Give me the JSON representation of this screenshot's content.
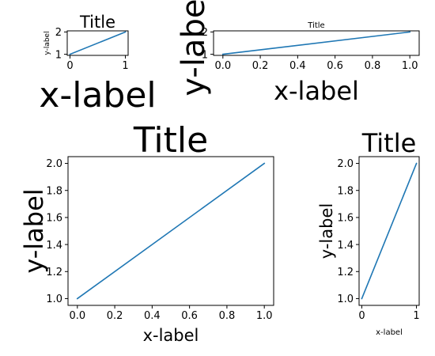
{
  "chart_data": [
    {
      "type": "line",
      "title": "Title",
      "xlabel": "x-label",
      "ylabel": "y-label",
      "x": [
        0,
        1
      ],
      "y": [
        1,
        2
      ],
      "xlim": [
        -0.05,
        1.05
      ],
      "ylim": [
        0.95,
        2.05
      ],
      "xticks": [
        0,
        1
      ],
      "yticks": [
        1,
        2
      ],
      "color": "#1f77b4",
      "grid": false
    },
    {
      "type": "line",
      "title": "Title",
      "xlabel": "x-label",
      "ylabel": "y-label",
      "x": [
        0,
        1
      ],
      "y": [
        1,
        2
      ],
      "xlim": [
        -0.05,
        1.05
      ],
      "ylim": [
        0.95,
        2.05
      ],
      "xticks": [
        0.0,
        0.2,
        0.4,
        0.6,
        0.8,
        1.0
      ],
      "yticks": [
        1,
        2
      ],
      "color": "#1f77b4",
      "grid": false
    },
    {
      "type": "line",
      "title": "Title",
      "xlabel": "x-label",
      "ylabel": "y-label",
      "x": [
        0,
        1
      ],
      "y": [
        1,
        2
      ],
      "xlim": [
        -0.05,
        1.05
      ],
      "ylim": [
        0.95,
        2.05
      ],
      "xticks": [
        0.0,
        0.2,
        0.4,
        0.6,
        0.8,
        1.0
      ],
      "yticks": [
        1.0,
        1.2,
        1.4,
        1.6,
        1.8,
        2.0
      ],
      "color": "#1f77b4",
      "grid": false
    },
    {
      "type": "line",
      "title": "Title",
      "xlabel": "x-label",
      "ylabel": "y-label",
      "x": [
        0,
        1
      ],
      "y": [
        1,
        2
      ],
      "xlim": [
        -0.05,
        1.05
      ],
      "ylim": [
        0.95,
        2.05
      ],
      "xticks": [
        0,
        1
      ],
      "yticks": [
        1.0,
        1.2,
        1.4,
        1.6,
        1.8,
        2.0
      ],
      "color": "#1f77b4",
      "grid": false
    }
  ]
}
